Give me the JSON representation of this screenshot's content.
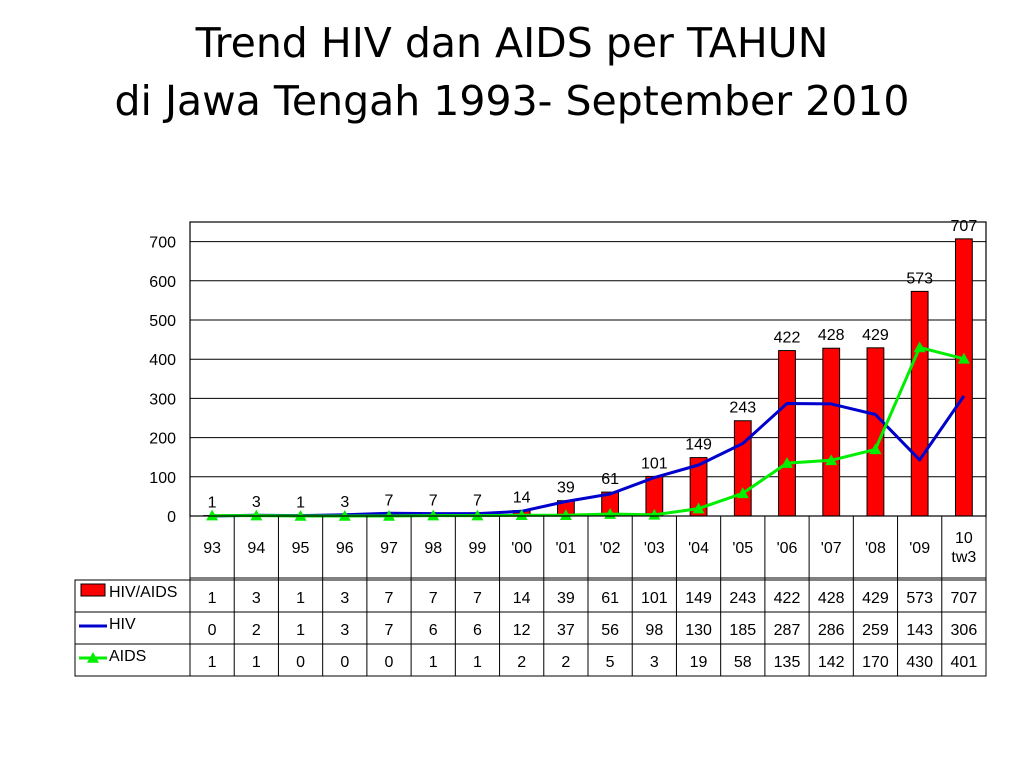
{
  "title": {
    "line1": "Trend HIV dan AIDS per TAHUN",
    "line2": "di Jawa Tengah 1993- September 2010"
  },
  "chart_data": {
    "type": "bar",
    "categories": [
      "93",
      "94",
      "95",
      "96",
      "97",
      "98",
      "99",
      "'00",
      "'01",
      "'02",
      "'03",
      "'04",
      "'05",
      "'06",
      "'07",
      "'08",
      "'09",
      "10 tw3"
    ],
    "ylim": [
      0,
      750
    ],
    "yticks": [
      0,
      100,
      200,
      300,
      400,
      500,
      600,
      700
    ],
    "grid": true,
    "series": [
      {
        "name": "HIV/AIDS",
        "type": "bar",
        "color": "#ff0000",
        "values": [
          1,
          3,
          1,
          3,
          7,
          7,
          7,
          14,
          39,
          61,
          101,
          149,
          243,
          422,
          428,
          429,
          573,
          707
        ]
      },
      {
        "name": "HIV",
        "type": "line",
        "color": "#0000cc",
        "values": [
          0,
          2,
          1,
          3,
          7,
          6,
          6,
          12,
          37,
          56,
          98,
          130,
          185,
          287,
          286,
          259,
          143,
          306
        ]
      },
      {
        "name": "AIDS",
        "type": "line",
        "marker": "triangle",
        "color": "#00ee00",
        "values": [
          1,
          1,
          0,
          0,
          0,
          1,
          1,
          2,
          2,
          5,
          3,
          19,
          58,
          135,
          142,
          170,
          430,
          401
        ]
      }
    ]
  }
}
